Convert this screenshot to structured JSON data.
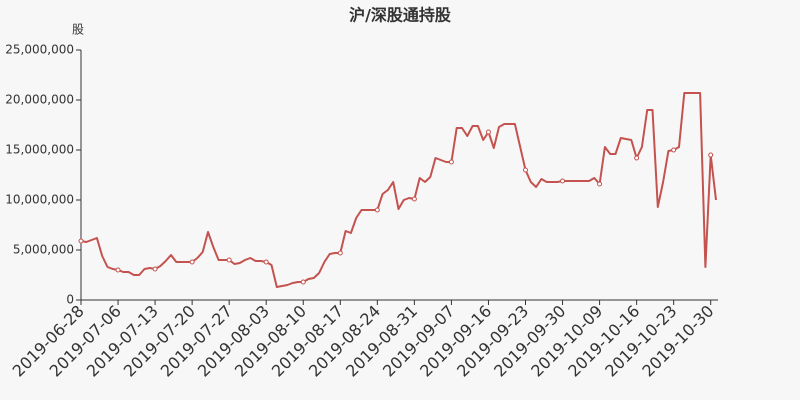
{
  "chart_data": {
    "type": "line",
    "title": "沪/深股通持股",
    "y_label": "股",
    "categories": [
      "2019-06-28",
      null,
      null,
      null,
      null,
      null,
      null,
      "2019-07-06",
      null,
      null,
      null,
      null,
      null,
      null,
      "2019-07-13",
      null,
      null,
      null,
      null,
      null,
      null,
      "2019-07-20",
      null,
      null,
      null,
      null,
      null,
      null,
      "2019-07-27",
      null,
      null,
      null,
      null,
      null,
      null,
      "2019-08-03",
      null,
      null,
      null,
      null,
      null,
      null,
      "2019-08-10",
      null,
      null,
      null,
      null,
      null,
      null,
      "2019-08-17",
      null,
      null,
      null,
      null,
      null,
      null,
      "2019-08-24",
      null,
      null,
      null,
      null,
      null,
      null,
      "2019-08-31",
      null,
      null,
      null,
      null,
      null,
      null,
      "2019-09-07",
      null,
      null,
      null,
      null,
      null,
      null,
      "2019-09-16",
      null,
      null,
      null,
      null,
      null,
      null,
      "2019-09-23",
      null,
      null,
      null,
      null,
      null,
      null,
      "2019-09-30",
      null,
      null,
      null,
      null,
      null,
      null,
      "2019-10-09",
      null,
      null,
      null,
      null,
      null,
      null,
      "2019-10-16",
      null,
      null,
      null,
      null,
      null,
      null,
      "2019-10-23",
      null,
      null,
      null,
      null,
      null,
      null,
      "2019-10-30",
      null
    ],
    "series": [
      {
        "color": "#c4524f",
        "values": [
          5900000,
          5800000,
          6000000,
          6200000,
          4400000,
          3300000,
          3100000,
          3000000,
          2800000,
          2800000,
          2500000,
          2500000,
          3100000,
          3200000,
          3100000,
          3400000,
          3900000,
          4500000,
          3800000,
          3800000,
          3800000,
          3800000,
          4200000,
          4800000,
          6800000,
          5300000,
          4000000,
          4000000,
          4000000,
          3600000,
          3700000,
          4000000,
          4200000,
          3900000,
          3900000,
          3800000,
          3500000,
          1300000,
          1400000,
          1500000,
          1700000,
          1800000,
          1800000,
          2100000,
          2200000,
          2700000,
          3800000,
          4600000,
          4700000,
          4700000,
          6900000,
          6700000,
          8200000,
          9000000,
          9000000,
          9000000,
          9000000,
          10600000,
          11000000,
          11800000,
          9100000,
          10000000,
          10200000,
          10100000,
          12200000,
          11800000,
          12300000,
          14200000,
          14000000,
          13800000,
          13800000,
          17200000,
          17200000,
          16400000,
          17400000,
          17400000,
          16000000,
          16800000,
          15200000,
          17300000,
          17600000,
          17600000,
          17600000,
          15300000,
          13000000,
          11800000,
          11300000,
          12100000,
          11800000,
          11800000,
          11800000,
          11900000,
          11900000,
          11900000,
          11900000,
          11900000,
          11900000,
          12200000,
          11600000,
          15300000,
          14600000,
          14600000,
          16200000,
          16100000,
          16000000,
          14200000,
          15300000,
          19000000,
          19000000,
          9300000,
          11800000,
          14900000,
          15000000,
          15300000,
          20700000,
          20700000,
          20700000,
          20700000,
          3300000,
          14500000,
          10000000
        ]
      }
    ],
    "ylim": [
      0,
      25000000
    ],
    "yticks": [
      0,
      {
        "value": 5000000,
        "label": "5,000,000"
      },
      {
        "value": 10000000,
        "label": "10,000,000"
      },
      {
        "value": 15000000,
        "label": "15,000,000"
      },
      {
        "value": 20000000,
        "label": "20,000,000"
      },
      {
        "value": 25000000,
        "label": "25,000,000"
      }
    ]
  }
}
